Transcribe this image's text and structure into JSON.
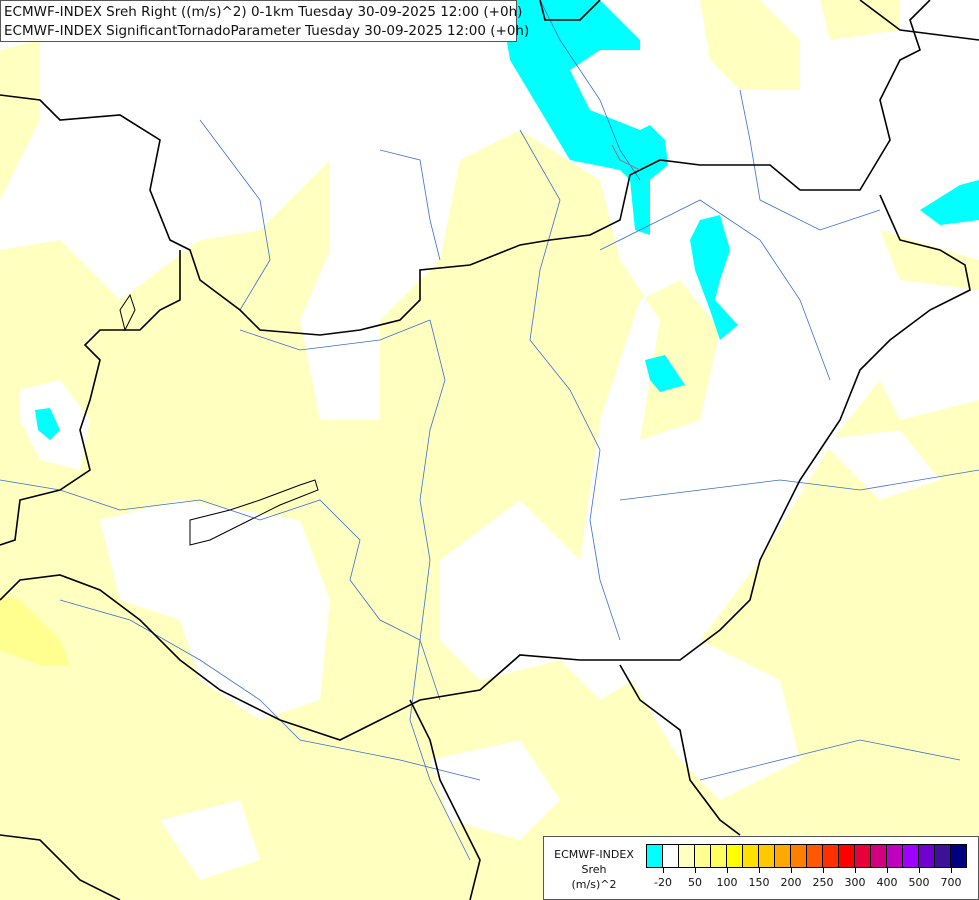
{
  "title": {
    "line1": "ECMWF-INDEX Sreh Right ((m/s)^2) 0-1km Tuesday 30-09-2025 12:00 (+0h)",
    "line2": "ECMWF-INDEX SignificantTornadoParameter Tuesday 30-09-2025 12:00 (+0h)"
  },
  "legend": {
    "title_lines": [
      "ECMWF-INDEX",
      "Sreh",
      "(m/s)^2"
    ],
    "colors": [
      "#00ffff",
      "#ffffff",
      "#ffffc0",
      "#ffff90",
      "#ffff60",
      "#ffff00",
      "#ffe000",
      "#ffc800",
      "#ffa800",
      "#ff8000",
      "#ff5800",
      "#ff3000",
      "#ff0000",
      "#e8003c",
      "#d00080",
      "#c000c0",
      "#a000ff",
      "#7000d0",
      "#3c1098",
      "#000080"
    ],
    "ticks": [
      "-20",
      "50",
      "100",
      "150",
      "200",
      "250",
      "300",
      "400",
      "500",
      "700"
    ]
  },
  "map_colors": {
    "background": "#ffffff",
    "light_yellow": "#ffffc0",
    "yellow": "#ffff90",
    "cyan": "#00ffff",
    "border": "#000000",
    "river": "#3366cc"
  }
}
